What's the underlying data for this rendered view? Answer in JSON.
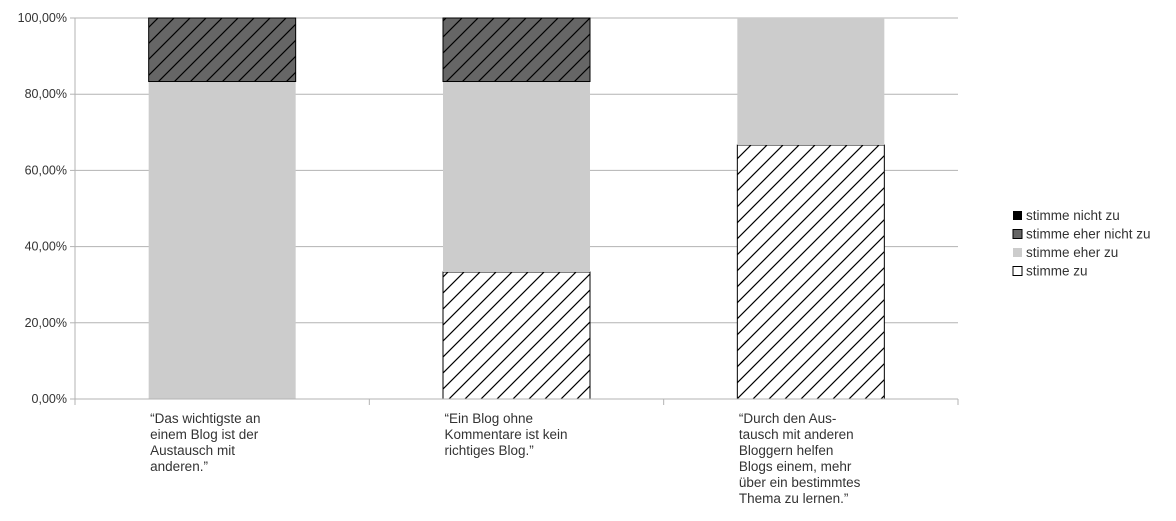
{
  "chart_data": {
    "type": "bar",
    "stacked": true,
    "categories": [
      "“Das wichtigste an einem Blog ist der Austausch mit anderen.”",
      "“Ein Blog ohne Kommentare ist kein richtiges Blog.”",
      "“Durch den Aus-tausch mit anderen Bloggern helfen Blogs einem, mehr über ein bestimmtes Thema zu lernen.”"
    ],
    "category_lines": [
      [
        "“Das wichtigste an",
        "einem Blog ist der",
        "Austausch mit",
        "anderen.”"
      ],
      [
        "“Ein Blog ohne",
        "Kommentare ist kein",
        "richtiges Blog.”"
      ],
      [
        "“Durch den Aus-",
        "tausch mit anderen",
        "Bloggern helfen",
        "Blogs einem, mehr",
        "über ein bestimmtes",
        "Thema zu lernen.”"
      ]
    ],
    "series": [
      {
        "name": "stimme zu",
        "values": [
          0,
          33.33,
          66.67
        ],
        "color": "#ffffff",
        "pattern": "hatch"
      },
      {
        "name": "stimme eher zu",
        "values": [
          83.33,
          50.0,
          33.33
        ],
        "color": "#cccccc",
        "pattern": "none"
      },
      {
        "name": "stimme eher nicht zu",
        "values": [
          16.67,
          16.67,
          0
        ],
        "color": "#666666",
        "pattern": "hatch"
      },
      {
        "name": "stimme nicht zu",
        "values": [
          0,
          0,
          0
        ],
        "color": "#000000",
        "pattern": "none"
      }
    ],
    "legend_order": [
      "stimme nicht zu",
      "stimme eher nicht zu",
      "stimme eher zu",
      "stimme zu"
    ],
    "yticks": [
      "0,00%",
      "20,00%",
      "40,00%",
      "60,00%",
      "80,00%",
      "100,00%"
    ],
    "ylim": [
      0,
      100
    ],
    "grid": true,
    "legend_position": "right",
    "title": "",
    "xlabel": "",
    "ylabel": ""
  }
}
